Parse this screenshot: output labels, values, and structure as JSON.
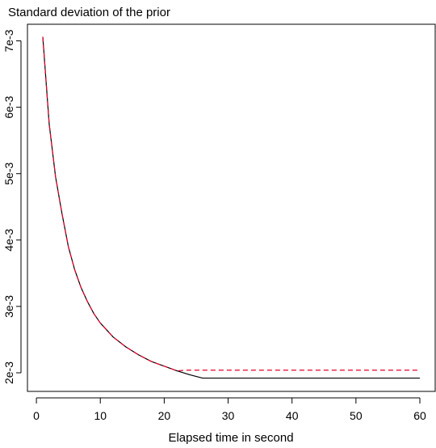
{
  "chart_data": {
    "type": "line",
    "title": "Standard deviation of the prior",
    "xlabel": "Elapsed time in second",
    "ylabel": "",
    "xlim": [
      -1.4,
      62.4
    ],
    "ylim": [
      0.00172,
      0.00725
    ],
    "x_ticks": [
      0,
      10,
      20,
      30,
      40,
      50,
      60
    ],
    "x_tick_labels": [
      "0",
      "10",
      "20",
      "30",
      "40",
      "50",
      "60"
    ],
    "y_ticks": [
      0.002,
      0.003,
      0.004,
      0.005,
      0.006,
      0.007
    ],
    "y_tick_labels": [
      "2e-3",
      "3e-3",
      "4e-3",
      "5e-3",
      "6e-3",
      "7e-3"
    ],
    "grid": false,
    "legend": "none",
    "series": [
      {
        "color": "#000000",
        "line_style": "solid",
        "x": [
          1,
          2,
          3,
          4,
          5,
          6,
          7,
          8,
          9,
          10,
          12,
          14,
          16,
          18,
          20,
          22,
          24,
          26,
          30,
          40,
          50,
          60
        ],
        "y": [
          0.00706,
          0.00575,
          0.00495,
          0.0044,
          0.0039,
          0.00355,
          0.00328,
          0.00307,
          0.00289,
          0.00275,
          0.00254,
          0.00239,
          0.00227,
          0.00217,
          0.0021,
          0.00203,
          0.00197,
          0.00192,
          0.00192,
          0.00192,
          0.00192,
          0.00192
        ]
      },
      {
        "color": "#e8002a",
        "line_style": "dashed",
        "x": [
          1,
          2,
          3,
          4,
          5,
          6,
          7,
          8,
          9,
          10,
          12,
          14,
          16,
          18,
          20,
          22,
          23.5,
          30,
          40,
          50,
          60
        ],
        "y": [
          0.00706,
          0.00575,
          0.00495,
          0.0044,
          0.0039,
          0.00355,
          0.00328,
          0.00307,
          0.00289,
          0.00275,
          0.00254,
          0.00239,
          0.00227,
          0.00217,
          0.0021,
          0.00203,
          0.00204,
          0.00204,
          0.00204,
          0.00204,
          0.00204
        ]
      }
    ]
  }
}
